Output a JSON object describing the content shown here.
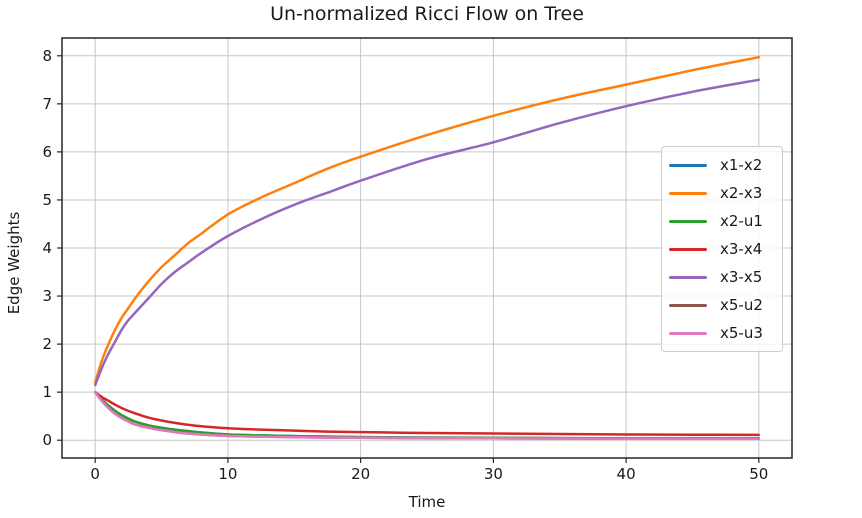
{
  "title": "Un-normalized Ricci Flow on Tree",
  "chart_data": {
    "type": "line",
    "title": "Un-normalized Ricci Flow on Tree",
    "xlabel": "Time",
    "ylabel": "Edge Weights",
    "x_ticks": [
      0,
      10,
      20,
      30,
      40,
      50
    ],
    "y_ticks": [
      0,
      1,
      2,
      3,
      4,
      5,
      6,
      7,
      8
    ],
    "xlim": [
      -2.5,
      52.5
    ],
    "ylim": [
      -0.37,
      8.37
    ],
    "grid": true,
    "legend_position": "center right",
    "x": [
      0,
      0.5,
      1,
      1.5,
      2,
      2.5,
      3,
      4,
      5,
      6,
      7,
      8,
      10,
      12.5,
      15,
      17.5,
      20,
      25,
      30,
      35,
      40,
      45,
      50
    ],
    "series": [
      {
        "name": "x1-x2",
        "color": "#1f77b4",
        "values": [
          1.0,
          0.85,
          0.72,
          0.61,
          0.52,
          0.45,
          0.39,
          0.31,
          0.26,
          0.22,
          0.19,
          0.16,
          0.12,
          0.1,
          0.085,
          0.075,
          0.065,
          0.055,
          0.05,
          0.045,
          0.04,
          0.04,
          0.04
        ]
      },
      {
        "name": "x2-x3",
        "color": "#ff7f0e",
        "values": [
          1.2,
          1.65,
          2.0,
          2.3,
          2.55,
          2.75,
          2.95,
          3.3,
          3.6,
          3.85,
          4.1,
          4.3,
          4.7,
          5.05,
          5.35,
          5.65,
          5.9,
          6.35,
          6.75,
          7.1,
          7.4,
          7.7,
          7.97
        ]
      },
      {
        "name": "x2-u1",
        "color": "#2ca02c",
        "values": [
          1.0,
          0.85,
          0.72,
          0.61,
          0.52,
          0.45,
          0.39,
          0.31,
          0.26,
          0.22,
          0.19,
          0.16,
          0.12,
          0.1,
          0.085,
          0.075,
          0.065,
          0.055,
          0.05,
          0.045,
          0.04,
          0.04,
          0.04
        ]
      },
      {
        "name": "x3-x4",
        "color": "#d62728",
        "values": [
          1.0,
          0.9,
          0.82,
          0.74,
          0.67,
          0.61,
          0.56,
          0.47,
          0.41,
          0.36,
          0.32,
          0.29,
          0.25,
          0.22,
          0.2,
          0.18,
          0.17,
          0.15,
          0.14,
          0.13,
          0.12,
          0.115,
          0.11
        ]
      },
      {
        "name": "x3-x5",
        "color": "#9467bd",
        "values": [
          1.15,
          1.5,
          1.8,
          2.05,
          2.3,
          2.5,
          2.65,
          2.95,
          3.25,
          3.5,
          3.7,
          3.9,
          4.25,
          4.6,
          4.9,
          5.15,
          5.4,
          5.85,
          6.2,
          6.6,
          6.95,
          7.25,
          7.5
        ]
      },
      {
        "name": "x5-u2",
        "color": "#8c564b",
        "values": [
          1.0,
          0.82,
          0.67,
          0.55,
          0.46,
          0.39,
          0.33,
          0.26,
          0.21,
          0.17,
          0.14,
          0.12,
          0.09,
          0.075,
          0.065,
          0.055,
          0.05,
          0.045,
          0.04,
          0.035,
          0.03,
          0.03,
          0.03
        ]
      },
      {
        "name": "x5-u3",
        "color": "#e377c2",
        "values": [
          1.0,
          0.82,
          0.67,
          0.55,
          0.46,
          0.39,
          0.33,
          0.26,
          0.21,
          0.17,
          0.14,
          0.12,
          0.09,
          0.075,
          0.065,
          0.055,
          0.05,
          0.045,
          0.04,
          0.035,
          0.03,
          0.03,
          0.03
        ]
      }
    ]
  },
  "colors": {
    "background": "#ffffff",
    "spine": "#262626",
    "grid": "#c6c6c6",
    "text": "#1a1a1a",
    "legend_border": "#cccccc"
  }
}
